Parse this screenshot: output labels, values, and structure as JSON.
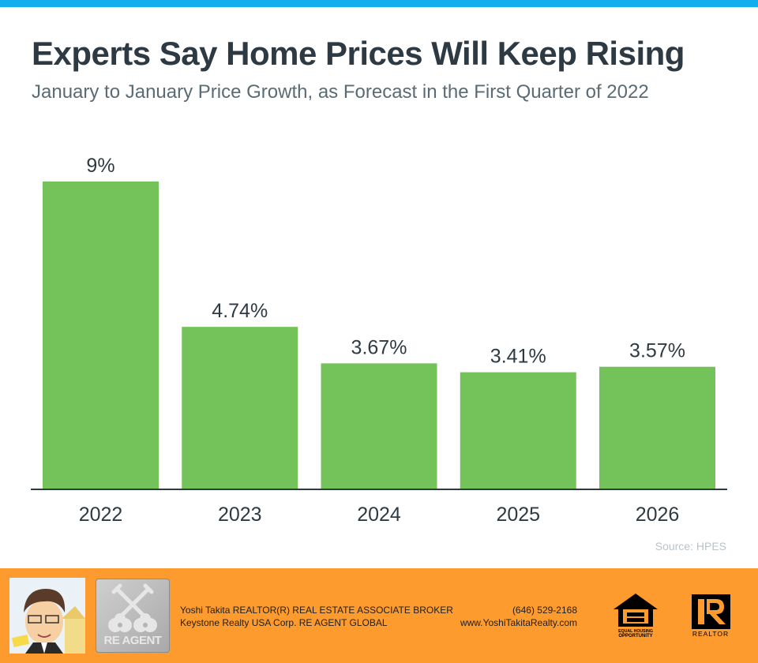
{
  "header": {
    "title": "Experts Say Home Prices Will Keep Rising",
    "subtitle": "January to January Price Growth, as Forecast in the First Quarter of 2022"
  },
  "chart_data": {
    "type": "bar",
    "title": "Experts Say Home Prices Will Keep Rising",
    "subtitle": "January to January Price Growth, as Forecast in the First Quarter of 2022",
    "categories": [
      "2022",
      "2023",
      "2024",
      "2025",
      "2026"
    ],
    "values": [
      9,
      4.74,
      3.67,
      3.41,
      3.57
    ],
    "data_labels": [
      "9%",
      "4.74%",
      "3.67%",
      "3.41%",
      "3.57%"
    ],
    "xlabel": "",
    "ylabel": "",
    "ylim": [
      0,
      9
    ],
    "grid": false,
    "legend": "none",
    "bar_color": "#74c35a",
    "source": "Source: HPES"
  },
  "footer": {
    "agent_line1": "Yoshi Takita REALTOR(R) REAL ESTATE ASSOCIATE BROKER",
    "agent_line2": "Keystone Realty USA Corp.  RE AGENT GLOBAL",
    "phone": "(646) 529-2168",
    "website": "www.YoshiTakitaRealty.com",
    "reagent_logo_text": "RE AGENT",
    "eho_text_line1": "EQUAL HOUSING",
    "eho_text_line2": "OPPORTUNITY",
    "realtor_text": "REALTOR",
    "background_color": "#fd9b2f"
  },
  "colors": {
    "top_bar": "#14aeef",
    "title": "#2e3a43",
    "subtitle": "#5b6b74",
    "axis": "#2e3a43",
    "source": "#b9c3c9"
  }
}
